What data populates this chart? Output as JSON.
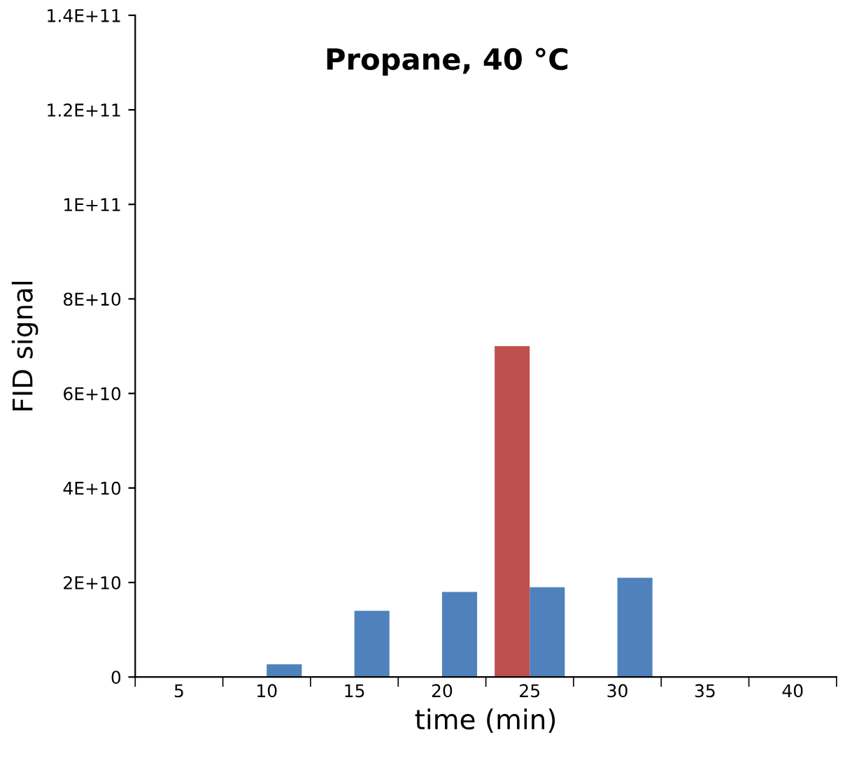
{
  "chart_data": {
    "type": "bar",
    "title": "Propane, 40 °C",
    "xlabel": "time (min)",
    "ylabel": "FID signal",
    "categories": [
      "5",
      "10",
      "15",
      "20",
      "25",
      "30",
      "35",
      "40"
    ],
    "series": [
      {
        "color": "#c0504d",
        "values": [
          0,
          0,
          0,
          0,
          70000000000.0,
          0,
          0,
          0
        ]
      },
      {
        "color": "#4f81bd",
        "values": [
          0,
          2700000000.0,
          14000000000.0,
          18000000000.0,
          19000000000.0,
          21000000000.0,
          0,
          0
        ]
      }
    ],
    "ylim": [
      0,
      140000000000.0
    ],
    "yticks": [
      {
        "value": 0,
        "label": "0"
      },
      {
        "value": 20000000000.0,
        "label": "2E+10"
      },
      {
        "value": 40000000000.0,
        "label": "4E+10"
      },
      {
        "value": 60000000000.0,
        "label": "6E+10"
      },
      {
        "value": 80000000000.0,
        "label": "8E+10"
      },
      {
        "value": 100000000000.0,
        "label": "1E+11"
      },
      {
        "value": 120000000000.0,
        "label": "1.2E+11"
      },
      {
        "value": 140000000000.0,
        "label": "1.4E+11"
      }
    ],
    "grid": false,
    "legend": false
  }
}
